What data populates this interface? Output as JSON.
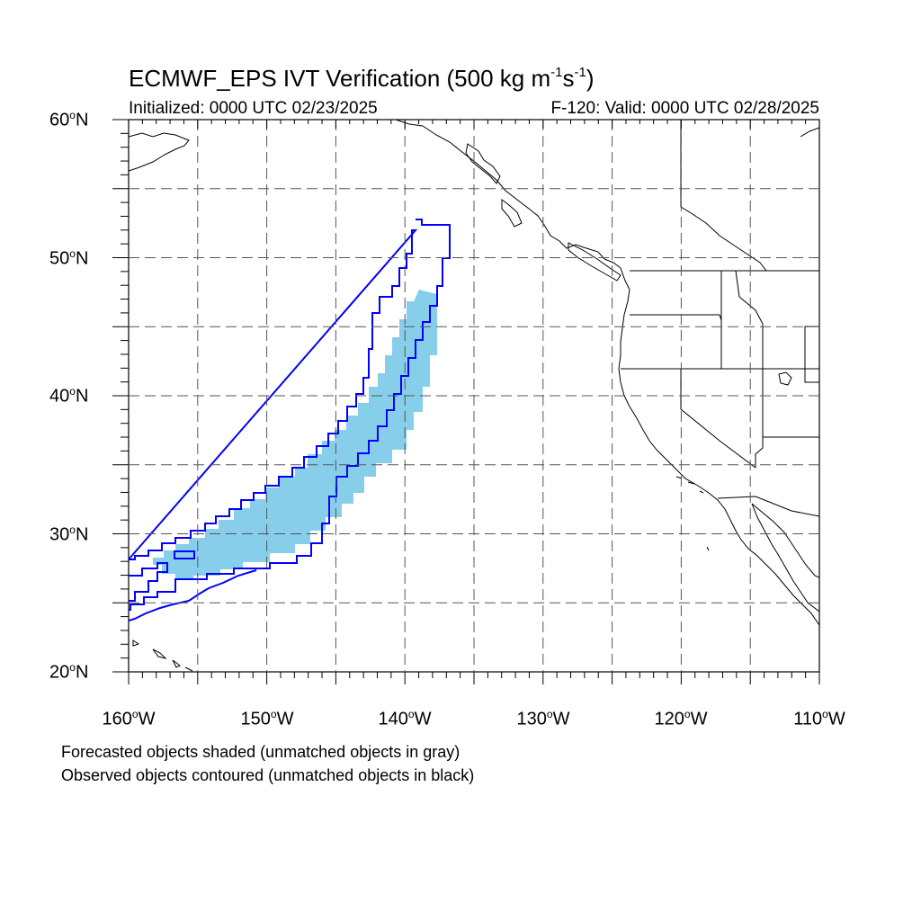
{
  "title": {
    "prefix": "ECMWF_EPS IVT Verification (500 kg m",
    "exp1": "-1",
    "mid": "s",
    "exp2": "-1",
    "suffix": ")"
  },
  "initialized": "Initialized: 0000 UTC 02/23/2025",
  "valid": "F-120: Valid: 0000 UTC 02/28/2025",
  "lat_labels": [
    "60",
    "50",
    "40",
    "30",
    "20"
  ],
  "lon_labels": [
    "160",
    "150",
    "140",
    "130",
    "120",
    "110"
  ],
  "lat_suffix": "N",
  "lon_suffix": "W",
  "degree": "o",
  "notes": [
    "Forecasted objects shaded (unmatched objects in gray)",
    "Observed objects contoured (unmatched objects in black)"
  ],
  "colors": {
    "forecast_fill": "#87ceeb",
    "observed_contour": "#0000ff",
    "coastline": "#000000",
    "grid": "#555555"
  },
  "map": {
    "lon_range": [
      -160,
      -110
    ],
    "lat_range": [
      20,
      60
    ],
    "grid_lon_step": 5,
    "grid_lat_step": 5,
    "grid_style": "dashed"
  }
}
